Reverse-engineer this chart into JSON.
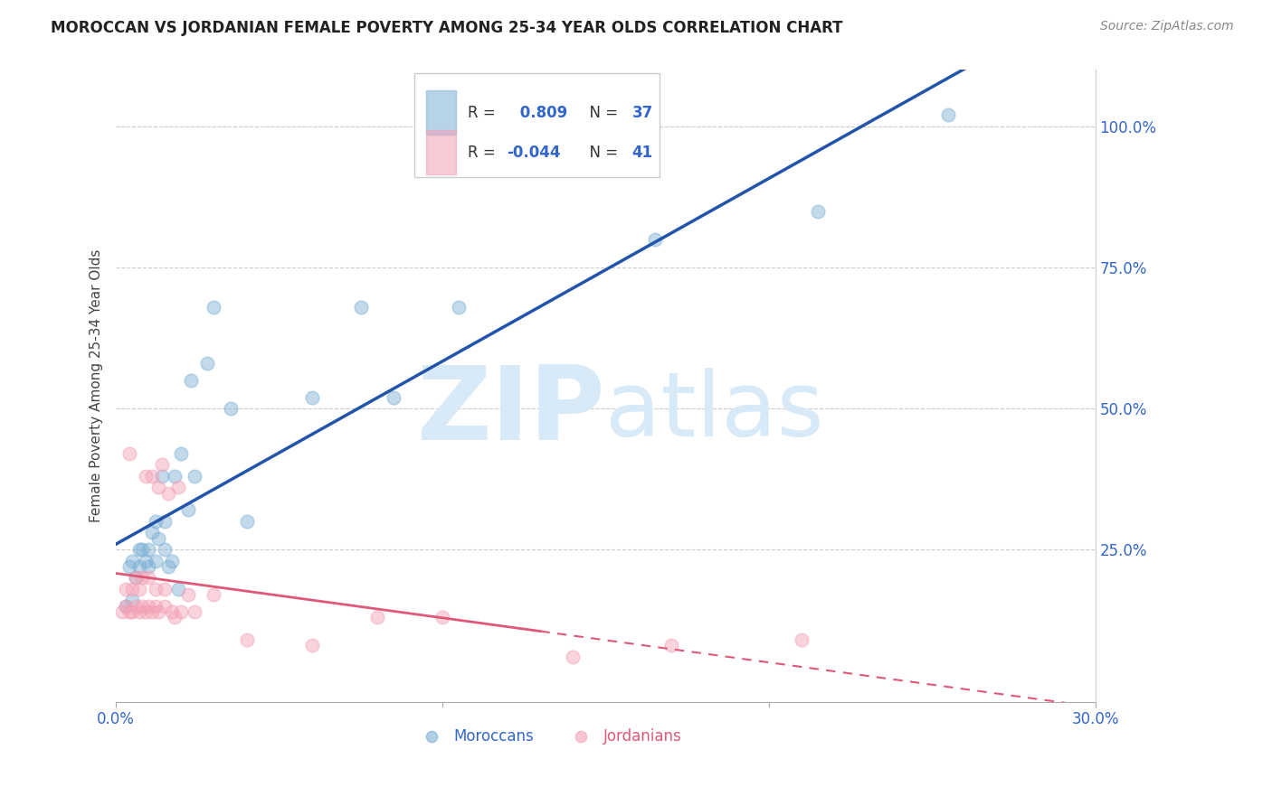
{
  "title": "MOROCCAN VS JORDANIAN FEMALE POVERTY AMONG 25-34 YEAR OLDS CORRELATION CHART",
  "source": "Source: ZipAtlas.com",
  "ylabel": "Female Poverty Among 25-34 Year Olds",
  "xlim": [
    0.0,
    0.3
  ],
  "ylim": [
    -0.02,
    1.1
  ],
  "xtick_vals": [
    0.0,
    0.1,
    0.2,
    0.3
  ],
  "xtick_labels": [
    "0.0%",
    "",
    "",
    "30.0%"
  ],
  "ytick_right_vals": [
    0.25,
    0.5,
    0.75,
    1.0
  ],
  "ytick_right_labels": [
    "25.0%",
    "50.0%",
    "75.0%",
    "100.0%"
  ],
  "moroccan_R": 0.809,
  "moroccan_N": 37,
  "jordanian_R": -0.044,
  "jordanian_N": 41,
  "moroccan_color": "#7bafd4",
  "jordanian_color": "#f4a0b5",
  "moroccan_line_color": "#2255aa",
  "jordanian_line_color": "#e05878",
  "watermark_color": "#d8eaf8",
  "background_color": "#ffffff",
  "moroccan_x": [
    0.003,
    0.004,
    0.005,
    0.005,
    0.006,
    0.007,
    0.007,
    0.008,
    0.009,
    0.01,
    0.01,
    0.011,
    0.012,
    0.012,
    0.013,
    0.014,
    0.015,
    0.015,
    0.016,
    0.017,
    0.018,
    0.019,
    0.02,
    0.022,
    0.023,
    0.024,
    0.028,
    0.03,
    0.035,
    0.04,
    0.06,
    0.075,
    0.085,
    0.105,
    0.165,
    0.215,
    0.255
  ],
  "moroccan_y": [
    0.15,
    0.22,
    0.16,
    0.23,
    0.2,
    0.22,
    0.25,
    0.25,
    0.23,
    0.22,
    0.25,
    0.28,
    0.23,
    0.3,
    0.27,
    0.38,
    0.25,
    0.3,
    0.22,
    0.23,
    0.38,
    0.18,
    0.42,
    0.32,
    0.55,
    0.38,
    0.58,
    0.68,
    0.5,
    0.3,
    0.52,
    0.68,
    0.52,
    0.68,
    0.8,
    0.85,
    1.02
  ],
  "jordanian_x": [
    0.002,
    0.003,
    0.003,
    0.004,
    0.004,
    0.005,
    0.005,
    0.006,
    0.006,
    0.007,
    0.007,
    0.008,
    0.008,
    0.009,
    0.009,
    0.01,
    0.01,
    0.011,
    0.011,
    0.012,
    0.012,
    0.013,
    0.013,
    0.014,
    0.015,
    0.015,
    0.016,
    0.017,
    0.018,
    0.019,
    0.02,
    0.022,
    0.024,
    0.03,
    0.04,
    0.06,
    0.08,
    0.1,
    0.14,
    0.17,
    0.21
  ],
  "jordanian_y": [
    0.14,
    0.15,
    0.18,
    0.14,
    0.42,
    0.14,
    0.18,
    0.15,
    0.2,
    0.14,
    0.18,
    0.15,
    0.2,
    0.14,
    0.38,
    0.15,
    0.2,
    0.14,
    0.38,
    0.15,
    0.18,
    0.14,
    0.36,
    0.4,
    0.15,
    0.18,
    0.35,
    0.14,
    0.13,
    0.36,
    0.14,
    0.17,
    0.14,
    0.17,
    0.09,
    0.08,
    0.13,
    0.13,
    0.06,
    0.08,
    0.09
  ]
}
